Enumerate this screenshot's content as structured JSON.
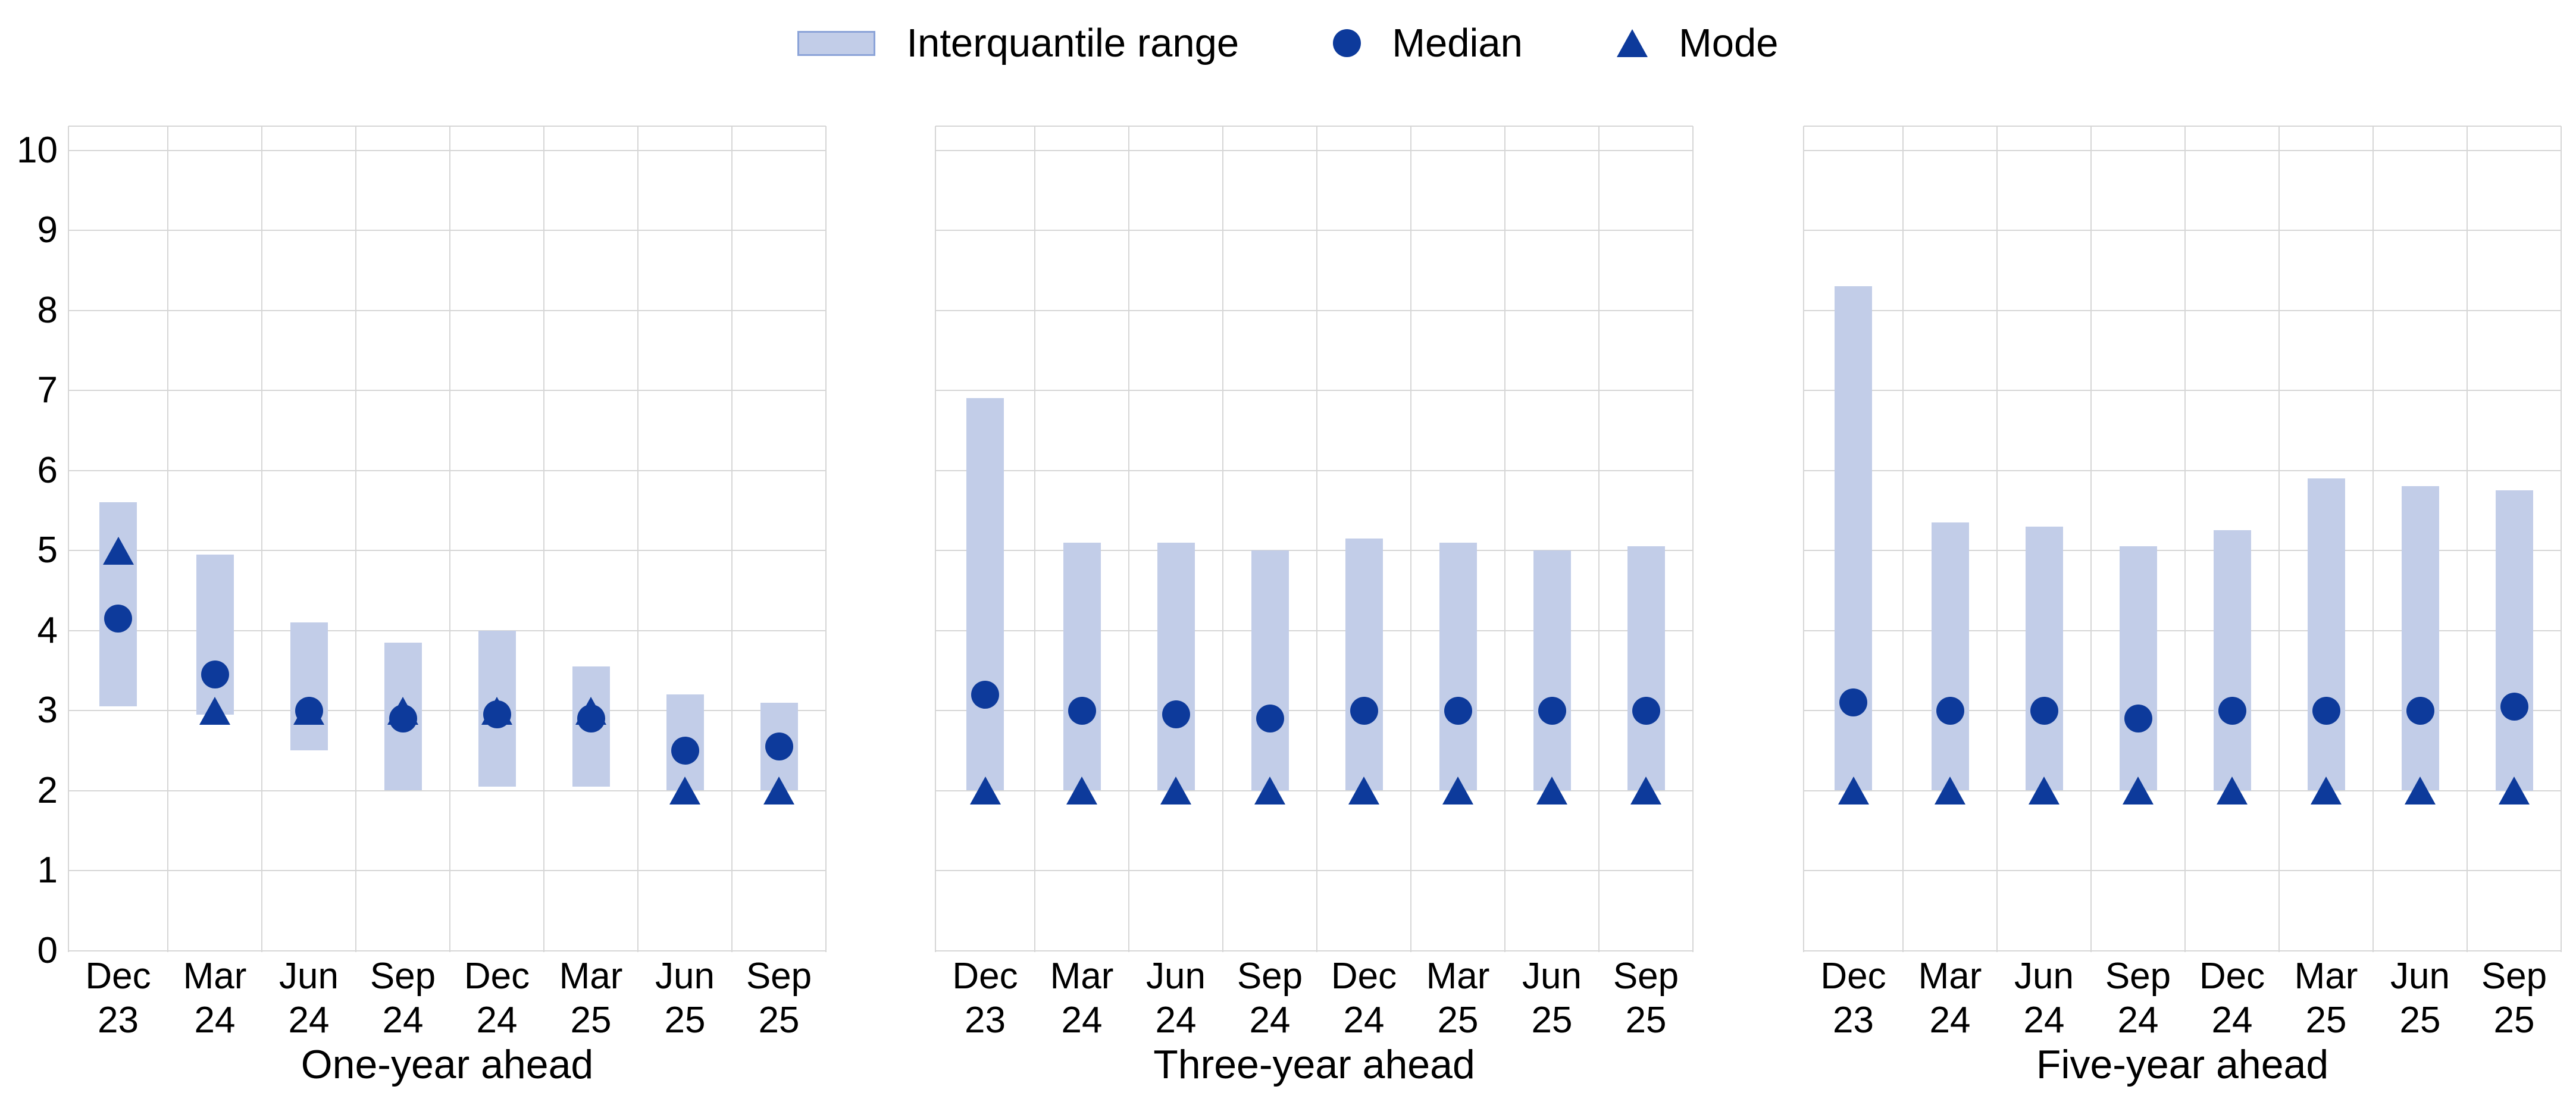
{
  "legend": {
    "items": [
      {
        "label": "Interquantile range",
        "marker": "swatch"
      },
      {
        "label": "Median",
        "marker": "circle"
      },
      {
        "label": "Mode",
        "marker": "triangle"
      }
    ]
  },
  "y_axis": {
    "min": 0,
    "max": 10,
    "ticks": [
      "0",
      "1",
      "2",
      "3",
      "4",
      "5",
      "6",
      "7",
      "8",
      "9",
      "10"
    ]
  },
  "colors": {
    "bar_fill": "#c2cde8",
    "swatch_border": "#8ba3d8",
    "marker_dark": "#0d3a9b",
    "gridline": "#d6d6d6",
    "text": "#000000",
    "background": "#ffffff"
  },
  "chart_data": [
    {
      "type": "bar",
      "title": "One-year ahead",
      "categories": [
        "Dec 23",
        "Mar 24",
        "Jun 24",
        "Sep 24",
        "Dec 24",
        "Mar 25",
        "Jun 25",
        "Sep 25"
      ],
      "ylim": [
        0,
        10
      ],
      "grid": true,
      "legend_position": "top-center",
      "series": [
        {
          "name": "Interquantile range",
          "type": "range_bar",
          "low": [
            3.05,
            2.95,
            2.5,
            2.0,
            2.05,
            2.05,
            2.0,
            2.0
          ],
          "high": [
            5.6,
            4.95,
            4.1,
            3.85,
            4.0,
            3.55,
            3.2,
            3.1
          ]
        },
        {
          "name": "Median",
          "type": "point_circle",
          "values": [
            4.15,
            3.45,
            3.0,
            2.9,
            2.95,
            2.9,
            2.5,
            2.55
          ]
        },
        {
          "name": "Mode",
          "type": "point_triangle",
          "values": [
            5.0,
            3.0,
            3.0,
            3.0,
            3.0,
            3.0,
            2.0,
            2.0
          ]
        }
      ]
    },
    {
      "type": "bar",
      "title": "Three-year ahead",
      "categories": [
        "Dec 23",
        "Mar 24",
        "Jun 24",
        "Sep 24",
        "Dec 24",
        "Mar 25",
        "Jun 25",
        "Sep 25"
      ],
      "ylim": [
        0,
        10
      ],
      "grid": true,
      "series": [
        {
          "name": "Interquantile range",
          "type": "range_bar",
          "low": [
            2.0,
            2.0,
            2.0,
            2.0,
            2.0,
            2.0,
            2.0,
            2.0
          ],
          "high": [
            6.9,
            5.1,
            5.1,
            5.0,
            5.15,
            5.1,
            5.0,
            5.05
          ]
        },
        {
          "name": "Median",
          "type": "point_circle",
          "values": [
            3.2,
            3.0,
            2.95,
            2.9,
            3.0,
            3.0,
            3.0,
            3.0
          ]
        },
        {
          "name": "Mode",
          "type": "point_triangle",
          "values": [
            2.0,
            2.0,
            2.0,
            2.0,
            2.0,
            2.0,
            2.0,
            2.0
          ]
        }
      ]
    },
    {
      "type": "bar",
      "title": "Five-year ahead",
      "categories": [
        "Dec 23",
        "Mar 24",
        "Jun 24",
        "Sep 24",
        "Dec 24",
        "Mar 25",
        "Jun 25",
        "Sep 25"
      ],
      "ylim": [
        0,
        10
      ],
      "grid": true,
      "series": [
        {
          "name": "Interquantile range",
          "type": "range_bar",
          "low": [
            2.0,
            2.0,
            2.0,
            2.0,
            2.0,
            2.0,
            2.0,
            2.0
          ],
          "high": [
            8.3,
            5.35,
            5.3,
            5.05,
            5.25,
            5.9,
            5.8,
            5.75
          ]
        },
        {
          "name": "Median",
          "type": "point_circle",
          "values": [
            3.1,
            3.0,
            3.0,
            2.9,
            3.0,
            3.0,
            3.0,
            3.05
          ]
        },
        {
          "name": "Mode",
          "type": "point_triangle",
          "values": [
            2.0,
            2.0,
            2.0,
            2.0,
            2.0,
            2.0,
            2.0,
            2.0
          ]
        }
      ]
    }
  ]
}
